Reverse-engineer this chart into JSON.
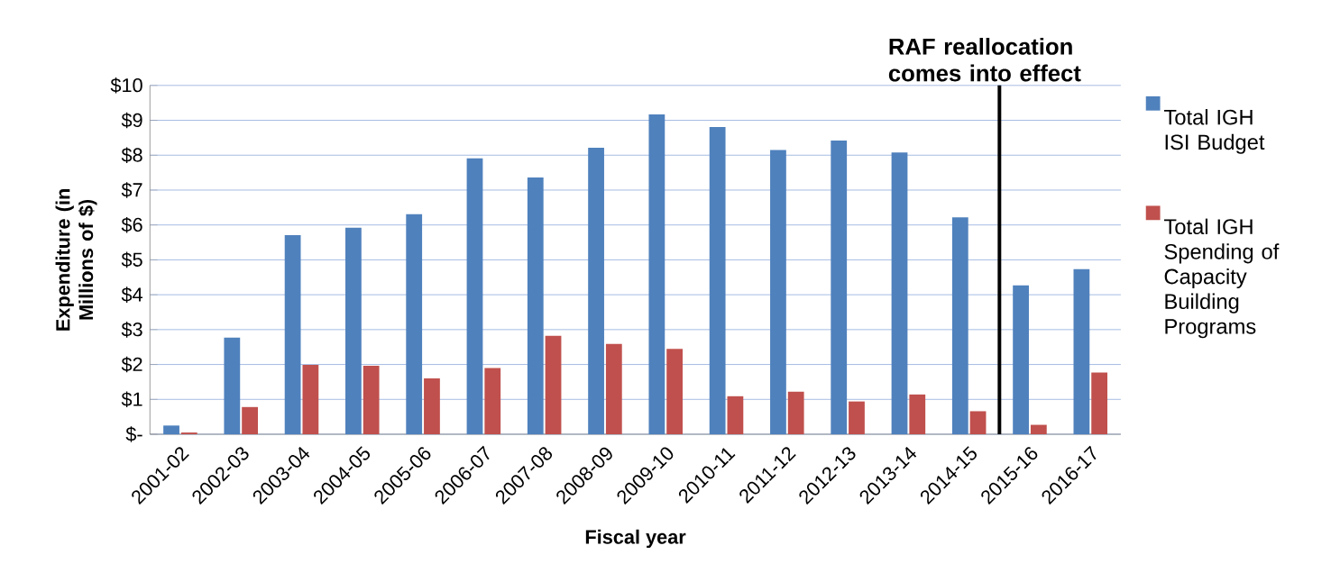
{
  "chart_data": {
    "type": "bar",
    "xlabel": "Fiscal year",
    "ylabel": "Expenditure (in Millions of $)",
    "categories": [
      "2001-02",
      "2002-03",
      "2003-04",
      "2004-05",
      "2005-06",
      "2006-07",
      "2007-08",
      "2008-09",
      "2009-10",
      "2010-11",
      "2011-12",
      "2012-13",
      "2013-14",
      "2014-15",
      "2015-16",
      "2016-17"
    ],
    "series": [
      {
        "name": "Total IGH ISI Budget",
        "color": "#4f81bd",
        "values": [
          0.25,
          2.77,
          5.71,
          5.92,
          6.31,
          7.91,
          7.36,
          8.21,
          9.17,
          8.81,
          8.15,
          8.42,
          8.08,
          6.22,
          4.27,
          4.73
        ]
      },
      {
        "name": "Total IGH Spending of Capacity Building Programs",
        "color": "#c0504d",
        "values": [
          0.05,
          0.78,
          1.99,
          1.96,
          1.6,
          1.9,
          2.82,
          2.59,
          2.45,
          1.09,
          1.22,
          0.94,
          1.14,
          0.66,
          0.27,
          1.77
        ]
      }
    ],
    "ylim": [
      0,
      10
    ],
    "yticks": [
      {
        "value": 0,
        "label": "$-"
      },
      {
        "value": 1,
        "label": "$1"
      },
      {
        "value": 2,
        "label": "$2"
      },
      {
        "value": 3,
        "label": "$3"
      },
      {
        "value": 4,
        "label": "$4"
      },
      {
        "value": 5,
        "label": "$5"
      },
      {
        "value": 6,
        "label": "$6"
      },
      {
        "value": 7,
        "label": "$7"
      },
      {
        "value": 8,
        "label": "$8"
      },
      {
        "value": 9,
        "label": "$9"
      },
      {
        "value": 10,
        "label": "$10"
      }
    ],
    "ref_lines": [
      {
        "axis": "x",
        "value": "2015-16",
        "label": "RAF reallocation comes into effect",
        "color": "#000000"
      }
    ],
    "grid": "y",
    "legend": "right"
  }
}
